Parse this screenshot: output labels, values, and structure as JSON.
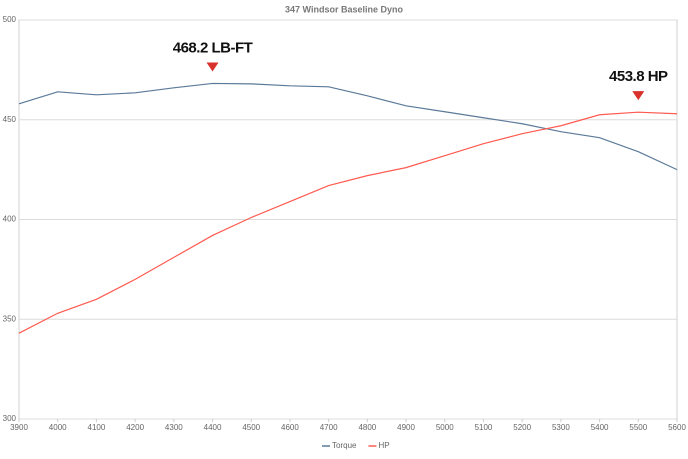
{
  "chart_data": {
    "type": "line",
    "title": "347 Windsor Baseline Dyno",
    "x": [
      3900,
      4000,
      4100,
      4200,
      4300,
      4400,
      4500,
      4600,
      4700,
      4800,
      4900,
      5000,
      5100,
      5200,
      5300,
      5400,
      5500,
      5600
    ],
    "series": [
      {
        "name": "Torque",
        "color": "#5b7a99",
        "values": [
          458,
          464,
          462.5,
          463.5,
          466,
          468.2,
          468,
          467,
          466.5,
          462,
          457,
          454,
          451,
          448,
          444,
          441,
          434,
          425
        ]
      },
      {
        "name": "HP",
        "color": "#ff5a4f",
        "values": [
          343,
          353,
          360,
          370,
          381,
          392,
          401,
          409,
          417,
          422,
          426,
          432,
          438,
          443,
          447,
          452.5,
          453.8,
          453
        ]
      }
    ],
    "xlim": [
      3900,
      5600
    ],
    "xticks": [
      3900,
      4000,
      4100,
      4200,
      4300,
      4400,
      4500,
      4600,
      4700,
      4800,
      4900,
      5000,
      5100,
      5200,
      5300,
      5400,
      5500,
      5600
    ],
    "ylim": [
      300,
      500
    ],
    "yticks": [
      300,
      350,
      400,
      450,
      500
    ],
    "grid": true,
    "legend": "bottom",
    "annotations": [
      {
        "text": "468.2 LB-FT",
        "x": 4400,
        "y": 468.2,
        "color": "#d9312b"
      },
      {
        "text": "453.8 HP",
        "x": 5500,
        "y": 453.8,
        "color": "#d9312b"
      }
    ]
  }
}
